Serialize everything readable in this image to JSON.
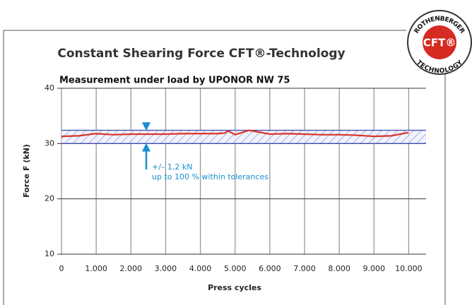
{
  "chart_data": {
    "type": "line",
    "title": "Constant Shearing Force CFT®-Technology",
    "subtitle": "Measurement under load by UPONOR NW 75",
    "y_label": "Force F (kN)",
    "x_label": "Press cycles",
    "xlim": [
      0,
      10500
    ],
    "ylim": [
      10,
      40
    ],
    "yticks": [
      10,
      20,
      30,
      40
    ],
    "xticks": [
      0,
      {
        "value": 1000,
        "label": "1.000"
      },
      {
        "value": 2000,
        "label": "2.000"
      },
      {
        "value": 3000,
        "label": "3.000"
      },
      {
        "value": 4000,
        "label": "4.000"
      },
      {
        "value": 5000,
        "label": "5.000"
      },
      {
        "value": 6000,
        "label": "6.000"
      },
      {
        "value": 7000,
        "label": "7.000"
      },
      {
        "value": 8000,
        "label": "8.000"
      },
      {
        "value": 9000,
        "label": "9.000"
      },
      {
        "value": 10000,
        "label": "10.000"
      }
    ],
    "tolerance_band": [
      30,
      32.4
    ],
    "annotations": [
      "+/– 1,2 kN",
      "up to 100 % within tolerances"
    ],
    "series": [
      {
        "name": "Force",
        "color": "#d9342b",
        "x": [
          0,
          500,
          1000,
          1500,
          2000,
          2500,
          3000,
          3500,
          4000,
          4500,
          4700,
          4800,
          5000,
          5400,
          6000,
          6500,
          7000,
          7500,
          8000,
          8500,
          9000,
          9500,
          10000
        ],
        "values": [
          31.3,
          31.4,
          31.8,
          31.6,
          31.7,
          31.7,
          31.7,
          31.8,
          31.8,
          31.8,
          31.9,
          32.3,
          31.6,
          32.4,
          31.7,
          31.8,
          31.7,
          31.6,
          31.6,
          31.5,
          31.3,
          31.4,
          32.0
        ]
      }
    ],
    "logo": {
      "top": "ROTHENBERGER",
      "center": "CFT®",
      "bottom": "TECHNOLOGY"
    }
  }
}
